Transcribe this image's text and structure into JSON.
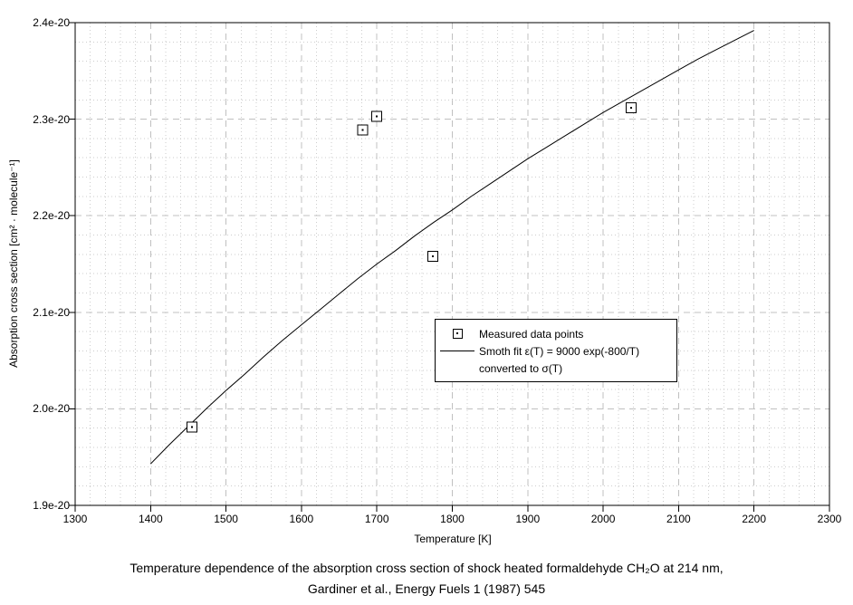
{
  "caption": {
    "line1": "Temperature dependence of the absorption cross section of shock heated formaldehyde CH₂O at 214 nm,",
    "line2": "Gardiner et al., Energy Fuels 1 (1987) 545"
  },
  "chart_data": {
    "type": "scatter",
    "title": "",
    "xlabel": "Temperature [K]",
    "ylabel": "Absorption cross section [cm² · molecule⁻¹]",
    "xlim": [
      1300,
      2300
    ],
    "ylim_e20": [
      1.9,
      2.4
    ],
    "y_unit_scale": "1e-20 cm2/molecule",
    "x_major_step": 100,
    "x_minor_step": 20,
    "y_major_step_e20": 0.1,
    "y_minor_step_e20": 0.02,
    "x_tick_labels": [
      "1300",
      "1400",
      "1500",
      "1600",
      "1700",
      "1800",
      "1900",
      "2000",
      "2100",
      "2200",
      "2300"
    ],
    "y_tick_labels": [
      "1.9e-20",
      "2.0e-20",
      "2.1e-20",
      "2.2e-20",
      "2.3e-20",
      "2.4e-20"
    ],
    "grid": {
      "minor_color": "#cdcdcd",
      "major_color": "#c0c0c0",
      "minor_style": "dotted",
      "major_style": "dashed",
      "on": true
    },
    "axis_color": "#000000",
    "series": [
      {
        "name": "Measured data points",
        "type": "scatter",
        "marker": "square-with-dot",
        "color": "#000000",
        "points": [
          {
            "T": 1455,
            "sigma_e20": 1.981
          },
          {
            "T": 1681,
            "sigma_e20": 2.289
          },
          {
            "T": 1700,
            "sigma_e20": 2.303
          },
          {
            "T": 1774,
            "sigma_e20": 2.158
          },
          {
            "T": 2037,
            "sigma_e20": 2.312
          }
        ]
      },
      {
        "name": "Smoth fit ε(T) = 9000 exp(-800/T) converted to σ(T)",
        "type": "line",
        "color": "#000000",
        "x": [
          1400,
          1425,
          1450,
          1475,
          1500,
          1525,
          1550,
          1575,
          1600,
          1625,
          1650,
          1675,
          1700,
          1725,
          1750,
          1775,
          1800,
          1825,
          1850,
          1875,
          1900,
          1925,
          1950,
          1975,
          2000,
          2025,
          2050,
          2075,
          2100,
          2125,
          2150,
          2175,
          2200
        ],
        "y_e20": [
          1.943,
          1.963,
          1.982,
          2.001,
          2.019,
          2.036,
          2.054,
          2.071,
          2.087,
          2.103,
          2.119,
          2.135,
          2.15,
          2.164,
          2.179,
          2.193,
          2.206,
          2.22,
          2.233,
          2.246,
          2.259,
          2.271,
          2.283,
          2.295,
          2.307,
          2.318,
          2.329,
          2.34,
          2.351,
          2.362,
          2.372,
          2.382,
          2.392
        ]
      }
    ],
    "legend": {
      "position": "inside-center-right",
      "items": [
        {
          "marker": "square-with-dot",
          "label": "Measured data points"
        },
        {
          "marker": "line",
          "label": "Smoth fit ε(T) = 9000 exp(-800/T)"
        },
        {
          "marker": "none",
          "label": "converted to σ(T)"
        }
      ]
    }
  }
}
